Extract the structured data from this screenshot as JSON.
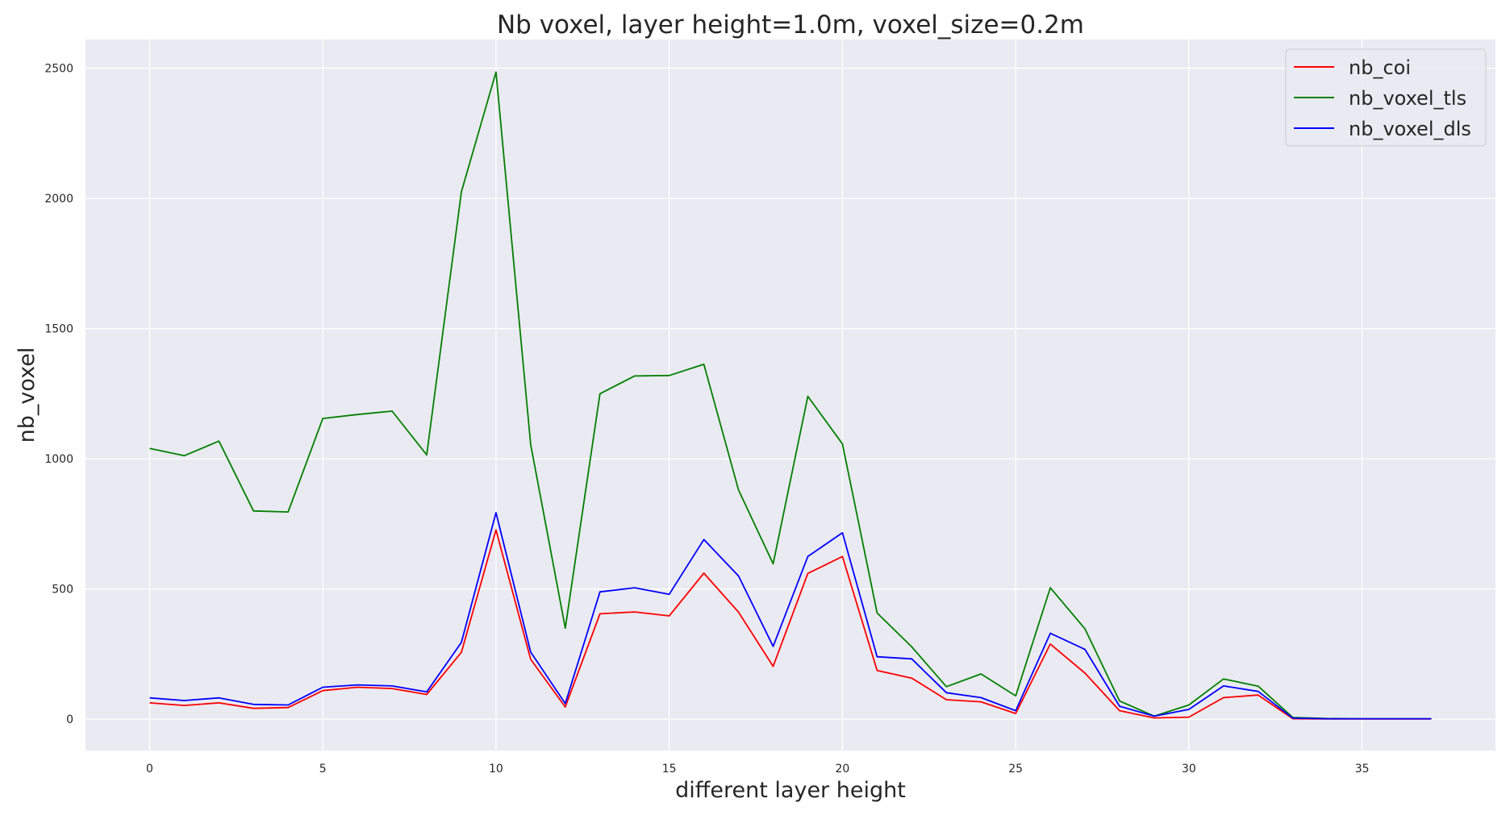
{
  "chart_data": {
    "type": "line",
    "title": "Nb voxel, layer height=1.0m, voxel_size=0.2m",
    "xlabel": "different layer height",
    "ylabel": "nb_voxel",
    "xlim": [
      -1.85,
      38.85
    ],
    "ylim": [
      -120,
      2610
    ],
    "xticks": [
      0,
      5,
      10,
      15,
      20,
      25,
      30,
      35
    ],
    "yticks": [
      0,
      500,
      1000,
      1500,
      2000,
      2500
    ],
    "grid": true,
    "legend_position": "top-right",
    "x": [
      0,
      1,
      2,
      3,
      4,
      5,
      6,
      7,
      8,
      9,
      10,
      11,
      12,
      13,
      14,
      15,
      16,
      17,
      18,
      19,
      20,
      21,
      22,
      23,
      24,
      25,
      26,
      27,
      28,
      29,
      30,
      31,
      32,
      33,
      34,
      35,
      36,
      37
    ],
    "series": [
      {
        "name": "nb_coi",
        "color": "#ff0000",
        "values": [
          63,
          53,
          63,
          42,
          45,
          110,
          123,
          118,
          95,
          257,
          727,
          230,
          47,
          405,
          412,
          397,
          561,
          411,
          203,
          560,
          625,
          187,
          158,
          75,
          67,
          22,
          289,
          177,
          33,
          5,
          8,
          83,
          93,
          2,
          1,
          1,
          1,
          1
        ]
      },
      {
        "name": "nb_voxel_tls",
        "color": "#008000",
        "values": [
          1040,
          1012,
          1068,
          800,
          796,
          1155,
          1170,
          1183,
          1015,
          2025,
          2485,
          1055,
          350,
          1250,
          1318,
          1320,
          1363,
          880,
          597,
          1240,
          1057,
          408,
          278,
          125,
          174,
          90,
          505,
          347,
          70,
          12,
          55,
          155,
          127,
          7,
          3,
          2,
          2,
          2
        ]
      },
      {
        "name": "nb_voxel_dls",
        "color": "#0000ff",
        "values": [
          82,
          72,
          82,
          57,
          55,
          123,
          132,
          128,
          105,
          295,
          793,
          258,
          60,
          489,
          505,
          480,
          690,
          550,
          280,
          625,
          716,
          240,
          232,
          102,
          83,
          33,
          330,
          268,
          50,
          12,
          38,
          128,
          107,
          4,
          2,
          2,
          2,
          2
        ]
      }
    ]
  }
}
